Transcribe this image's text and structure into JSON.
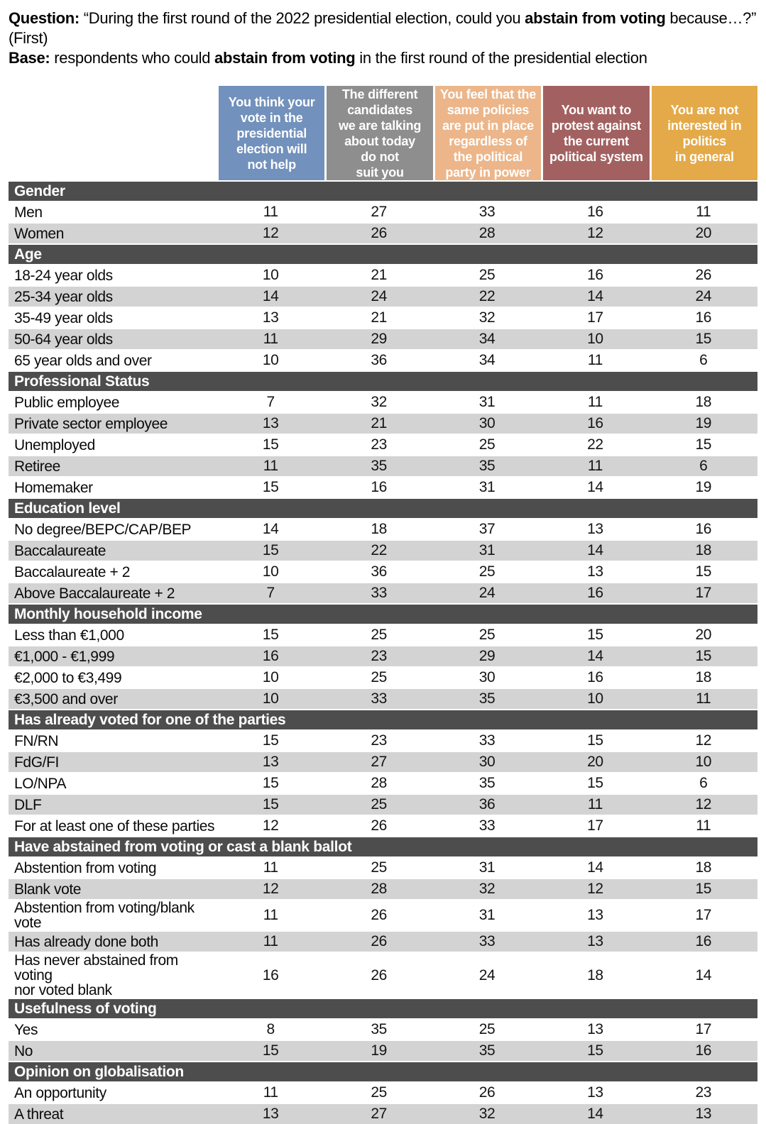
{
  "page_header": {
    "question": {
      "label": "Question:",
      "pre": " “During the first round of the 2022 presidential election, could you ",
      "bold": "abstain from voting",
      "post": " because…?” (First)"
    },
    "base": {
      "label": "Base:",
      "pre": " respondents who could ",
      "bold": "abstain from voting",
      "post": " in the first round of the presidential election"
    }
  },
  "palette": {
    "section_header_bg": "#4d4d4d",
    "row_stripe_bg": "#d3d3d3",
    "row_plain_bg": "#ffffff",
    "header_text": "#ffffff"
  },
  "chart_data": {
    "type": "table",
    "title": "During the first round of the 2022 presidential election, could you abstain from voting because…? (First)",
    "columns": [
      {
        "label": "You think your\nvote in the\npresidential\nelection will\nnot help",
        "color": "#7291bc"
      },
      {
        "label": "The different\ncandidates\nwe are talking\nabout today\ndo not\nsuit you",
        "color": "#8e8e8e"
      },
      {
        "label": "You feel that the\nsame policies\nare put in place\nregardless of\nthe political\nparty in power",
        "color": "#ecb68a"
      },
      {
        "label": "You want to\nprotest against\nthe current\npolitical system",
        "color": "#a26160"
      },
      {
        "label": "You are not\ninterested in\npolitics\nin general",
        "color": "#e4aa49"
      }
    ],
    "sections": [
      {
        "title": "Gender",
        "rows": [
          {
            "label": "Men",
            "values": [
              11,
              27,
              33,
              16,
              11
            ]
          },
          {
            "label": "Women",
            "values": [
              12,
              26,
              28,
              12,
              20
            ]
          }
        ]
      },
      {
        "title": "Age",
        "rows": [
          {
            "label": "18-24 year olds",
            "values": [
              10,
              21,
              25,
              16,
              26
            ]
          },
          {
            "label": "25-34 year olds",
            "values": [
              14,
              24,
              22,
              14,
              24
            ]
          },
          {
            "label": "35-49 year olds",
            "values": [
              13,
              21,
              32,
              17,
              16
            ]
          },
          {
            "label": "50-64 year olds",
            "values": [
              11,
              29,
              34,
              10,
              15
            ]
          },
          {
            "label": "65 year olds and over",
            "values": [
              10,
              36,
              34,
              11,
              6
            ]
          }
        ]
      },
      {
        "title": "Professional Status",
        "rows": [
          {
            "label": "Public employee",
            "values": [
              7,
              32,
              31,
              11,
              18
            ]
          },
          {
            "label": "Private sector employee",
            "values": [
              13,
              21,
              30,
              16,
              19
            ]
          },
          {
            "label": "Unemployed",
            "values": [
              15,
              23,
              25,
              22,
              15
            ]
          },
          {
            "label": "Retiree",
            "values": [
              11,
              35,
              35,
              11,
              6
            ]
          },
          {
            "label": "Homemaker",
            "values": [
              15,
              16,
              31,
              14,
              19
            ]
          }
        ]
      },
      {
        "title": "Education level",
        "rows": [
          {
            "label": "No degree/BEPC/CAP/BEP",
            "values": [
              14,
              18,
              37,
              13,
              16
            ]
          },
          {
            "label": "Baccalaureate",
            "values": [
              15,
              22,
              31,
              14,
              18
            ]
          },
          {
            "label": "Baccalaureate + 2",
            "values": [
              10,
              36,
              25,
              13,
              15
            ]
          },
          {
            "label": "Above Baccalaureate + 2",
            "values": [
              7,
              33,
              24,
              16,
              17
            ]
          }
        ]
      },
      {
        "title": "Monthly household income",
        "rows": [
          {
            "label": "Less than €1,000",
            "values": [
              15,
              25,
              25,
              15,
              20
            ]
          },
          {
            "label": "€1,000 - €1,999",
            "values": [
              16,
              23,
              29,
              14,
              15
            ]
          },
          {
            "label": "€2,000 to €3,499",
            "values": [
              10,
              25,
              30,
              16,
              18
            ]
          },
          {
            "label": "€3,500 and over",
            "values": [
              10,
              33,
              35,
              10,
              11
            ]
          }
        ]
      },
      {
        "title": "Has already voted for one of the parties",
        "rows": [
          {
            "label": "FN/RN",
            "values": [
              15,
              23,
              33,
              15,
              12
            ]
          },
          {
            "label": "FdG/FI",
            "values": [
              13,
              27,
              30,
              20,
              10
            ]
          },
          {
            "label": "LO/NPA",
            "values": [
              15,
              28,
              35,
              15,
              6
            ]
          },
          {
            "label": "DLF",
            "values": [
              15,
              25,
              36,
              11,
              12
            ]
          },
          {
            "label": "For at least one of these parties",
            "values": [
              12,
              26,
              33,
              17,
              11
            ]
          }
        ]
      },
      {
        "title": "Have abstained from voting or cast a blank ballot",
        "rows": [
          {
            "label": "Abstention from voting",
            "values": [
              11,
              25,
              31,
              14,
              18
            ]
          },
          {
            "label": "Blank vote",
            "values": [
              12,
              28,
              32,
              12,
              15
            ]
          },
          {
            "label": "Abstention from voting/blank vote",
            "values": [
              11,
              26,
              31,
              13,
              17
            ]
          },
          {
            "label": "Has already done both",
            "values": [
              11,
              26,
              33,
              13,
              16
            ]
          },
          {
            "label": "Has never abstained from voting\nnor voted blank",
            "values": [
              16,
              26,
              24,
              18,
              14
            ],
            "tall": true
          }
        ]
      },
      {
        "title": "Usefulness of voting",
        "rows": [
          {
            "label": "Yes",
            "values": [
              8,
              35,
              25,
              13,
              17
            ]
          },
          {
            "label": "No",
            "values": [
              15,
              19,
              35,
              15,
              16
            ]
          }
        ]
      },
      {
        "title": "Opinion on globalisation",
        "rows": [
          {
            "label": "An opportunity",
            "values": [
              11,
              25,
              26,
              13,
              23
            ]
          },
          {
            "label": "A threat",
            "values": [
              13,
              27,
              32,
              14,
              13
            ]
          }
        ]
      }
    ]
  }
}
